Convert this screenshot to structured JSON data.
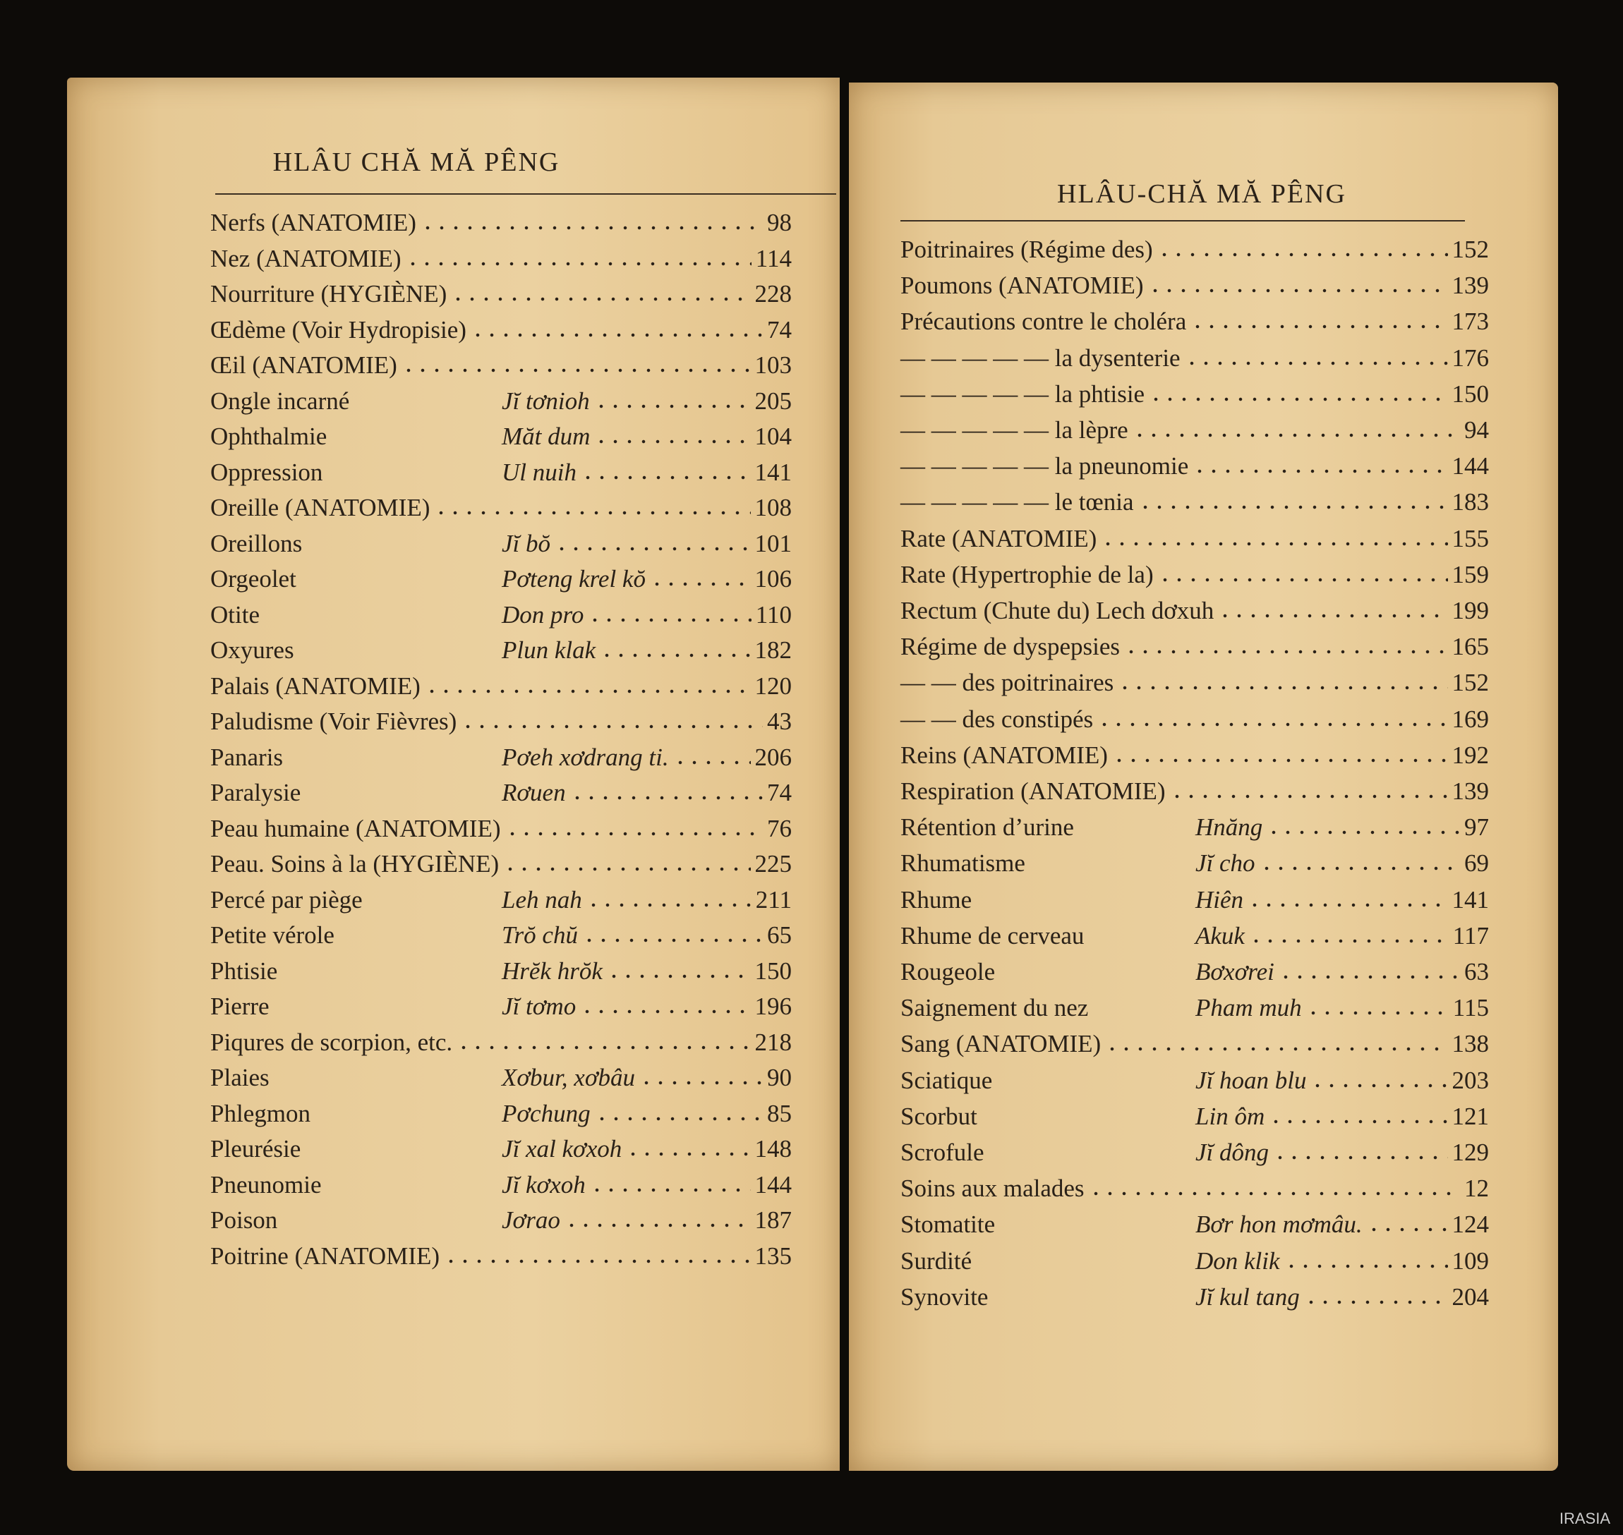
{
  "left_page": {
    "header": "HLÂU CHĂ MĂ PÊNG",
    "entries": [
      {
        "term": "Nerfs (ANATOMIE)",
        "page": "98"
      },
      {
        "term": "Nez (ANATOMIE)",
        "page": "114"
      },
      {
        "term": "Nourriture (HYGIÈNE)",
        "page": "228"
      },
      {
        "term": "Œdème (Voir Hydropisie)",
        "page": "74"
      },
      {
        "term": "Œil (ANATOMIE)",
        "page": "103"
      },
      {
        "term": "Ongle incarné",
        "translation": "Jĭ tơnioh",
        "page": "205"
      },
      {
        "term": "Ophthalmie",
        "translation": "Măt dum",
        "page": "104"
      },
      {
        "term": "Oppression",
        "translation": "Ul nuih",
        "page": "141"
      },
      {
        "term": "Oreille (ANATOMIE)",
        "page": "108"
      },
      {
        "term": "Oreillons",
        "translation": "Jĭ bŏ",
        "page": "101"
      },
      {
        "term": "Orgeolet",
        "translation": "Pơteng krel kŏ",
        "page": "106"
      },
      {
        "term": "Otite",
        "translation": "Don pro",
        "page": "110"
      },
      {
        "term": "Oxyures",
        "translation": "Plun klak",
        "page": "182"
      },
      {
        "term": "Palais (ANATOMIE)",
        "page": "120"
      },
      {
        "term": "Paludisme (Voir Fièvres)",
        "page": "43"
      },
      {
        "term": "Panaris",
        "translation": "Pơeh xơdrang ti.",
        "page": "206"
      },
      {
        "term": "Paralysie",
        "translation": "Rơuen",
        "page": "74"
      },
      {
        "term": "Peau humaine (ANATOMIE)",
        "page": "76"
      },
      {
        "term": "Peau. Soins à la (HYGIÈNE)",
        "page": "225"
      },
      {
        "term": "Percé par piège",
        "translation": "Leh nah",
        "page": "211"
      },
      {
        "term": "Petite vérole",
        "translation": "Trŏ chŭ",
        "page": "65"
      },
      {
        "term": "Phtisie",
        "translation": "Hrĕk hrŏk",
        "page": "150"
      },
      {
        "term": "Pierre",
        "translation": "Jĭ tơmo",
        "page": "196"
      },
      {
        "term": "Piqures de scorpion, etc.",
        "page": "218"
      },
      {
        "term": "Plaies",
        "translation": "Xơbur, xơbâu",
        "page": "90"
      },
      {
        "term": "Phlegmon",
        "translation": "Pơchung",
        "page": "85"
      },
      {
        "term": "Pleurésie",
        "translation": "Jĭ xal kơxoh",
        "page": "148"
      },
      {
        "term": "Pneunomie",
        "translation": "Jĭ kơxoh",
        "page": "144"
      },
      {
        "term": "Poison",
        "translation": "Jơrao",
        "page": "187"
      },
      {
        "term": "Poitrine (ANATOMIE)",
        "page": "135"
      }
    ]
  },
  "right_page": {
    "header": "HLÂU-CHĂ MĂ PÊNG",
    "entries": [
      {
        "term": "Poitrinaires (Régime des)",
        "page": "152"
      },
      {
        "term": "Poumons (ANATOMIE)",
        "page": "139"
      },
      {
        "term": "Précautions contre le choléra",
        "page": "173"
      },
      {
        "term": "— — — — — la dysenterie",
        "page": "176"
      },
      {
        "term": "— — — — — la phtisie",
        "page": "150"
      },
      {
        "term": "— — — — — la lèpre",
        "page": "94"
      },
      {
        "term": "— — — — — la pneunomie",
        "page": "144"
      },
      {
        "term": "— — — — — le tœnia",
        "page": "183"
      },
      {
        "term": "Rate (ANATOMIE)",
        "page": "155"
      },
      {
        "term": "Rate (Hypertrophie de la)",
        "page": "159"
      },
      {
        "term": "Rectum (Chute du) Lech dơxuh",
        "page": "199"
      },
      {
        "term": "Régime de dyspepsies",
        "page": "165"
      },
      {
        "term": "— — des poitrinaires",
        "page": "152"
      },
      {
        "term": "— — des constipés",
        "page": "169"
      },
      {
        "term": "Reins (ANATOMIE)",
        "page": "192"
      },
      {
        "term": "Respiration (ANATOMIE)",
        "page": "139"
      },
      {
        "term": "Rétention d’urine",
        "translation": "Hnăng",
        "page": "97"
      },
      {
        "term": "Rhumatisme",
        "translation": "Jĭ cho",
        "page": "69"
      },
      {
        "term": "Rhume",
        "translation": "Hiên",
        "page": "141"
      },
      {
        "term": "Rhume de cerveau",
        "translation": "Akuk",
        "page": "117"
      },
      {
        "term": "Rougeole",
        "translation": "Bơxơrei",
        "page": "63"
      },
      {
        "term": "Saignement du nez",
        "translation": "Pham muh",
        "page": "115"
      },
      {
        "term": "Sang (ANATOMIE)",
        "page": "138"
      },
      {
        "term": "Sciatique",
        "translation": "Jĭ hoan blu",
        "page": "203"
      },
      {
        "term": "Scorbut",
        "translation": "Lin ôm",
        "page": "121"
      },
      {
        "term": "Scrofule",
        "translation": "Jĭ dông",
        "page": "129"
      },
      {
        "term": "Soins aux malades",
        "page": "12"
      },
      {
        "term": "Stomatite",
        "translation": "Bơr hon mơmâu.",
        "page": "124"
      },
      {
        "term": "Surdité",
        "translation": "Don klik",
        "page": "109"
      },
      {
        "term": "Synovite",
        "translation": "Jĭ kul tang",
        "page": "204"
      }
    ]
  },
  "watermark": "IRASIA"
}
